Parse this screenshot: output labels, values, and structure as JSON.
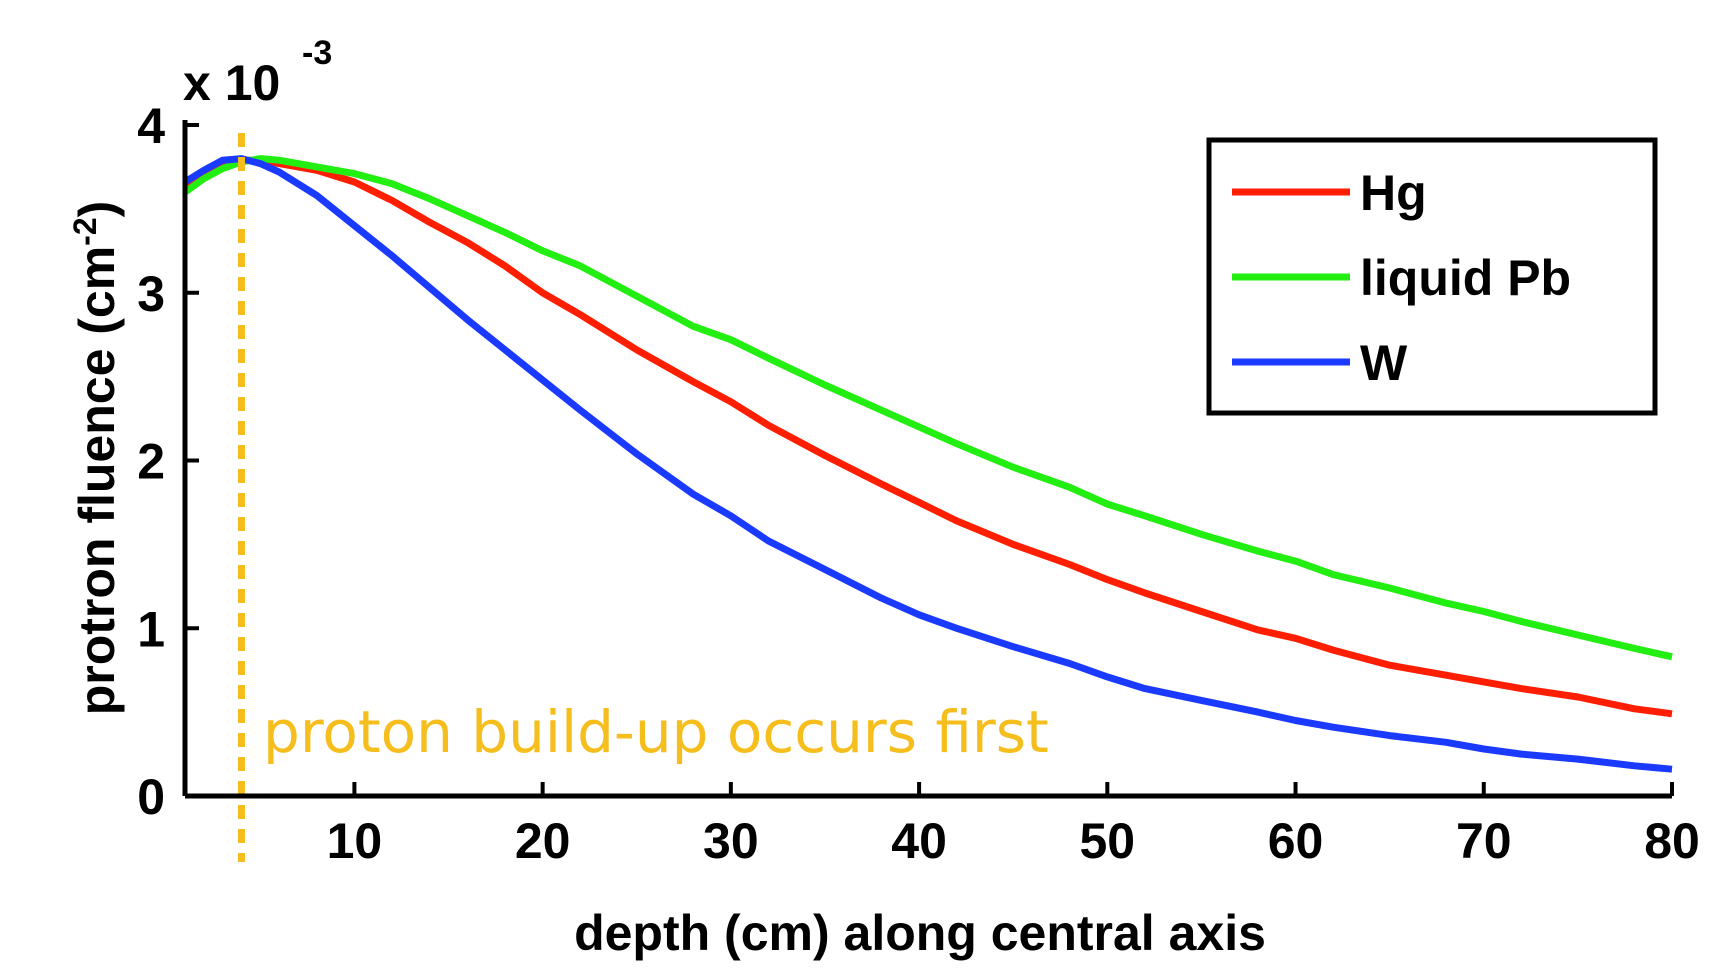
{
  "chart_data": {
    "type": "line",
    "title": "",
    "xlabel": "depth (cm) along central axis",
    "ylabel_main": "protron  fluence (cm",
    "ylabel_sup": "-2",
    "ylabel_close": ")",
    "exponent_base": "x 10",
    "exponent_power": "-3",
    "xlim": [
      1,
      80
    ],
    "ylim": [
      0,
      4
    ],
    "xticks": [
      10,
      20,
      30,
      40,
      50,
      60,
      70,
      80
    ],
    "yticks": [
      0,
      1,
      2,
      3,
      4
    ],
    "xtick_labels": [
      "10",
      "20",
      "30",
      "40",
      "50",
      "60",
      "70",
      "80"
    ],
    "ytick_labels": [
      "0",
      "1",
      "2",
      "3",
      "4"
    ],
    "grid": false,
    "legend_position": "top-right",
    "annotation": {
      "text": "proton build-up occurs first",
      "x_line": 4,
      "color": "#F5BE1C"
    },
    "series": [
      {
        "name": "Hg",
        "color": "#FF1E00",
        "x": [
          1,
          2,
          3,
          4,
          5,
          6,
          8,
          10,
          12,
          14,
          16,
          18,
          20,
          22,
          25,
          28,
          30,
          32,
          35,
          38,
          40,
          42,
          45,
          48,
          50,
          52,
          55,
          58,
          60,
          62,
          65,
          68,
          70,
          72,
          75,
          78,
          80
        ],
        "values": [
          3.63,
          3.7,
          3.76,
          3.79,
          3.79,
          3.77,
          3.73,
          3.66,
          3.55,
          3.42,
          3.3,
          3.16,
          3.0,
          2.87,
          2.66,
          2.47,
          2.35,
          2.21,
          2.03,
          1.86,
          1.75,
          1.64,
          1.5,
          1.38,
          1.29,
          1.21,
          1.1,
          0.99,
          0.94,
          0.87,
          0.78,
          0.72,
          0.68,
          0.64,
          0.59,
          0.52,
          0.49
        ]
      },
      {
        "name": "liquid Pb",
        "color": "#22EE11",
        "x": [
          1,
          2,
          3,
          4,
          5,
          6,
          8,
          10,
          12,
          14,
          16,
          18,
          20,
          22,
          25,
          28,
          30,
          32,
          35,
          38,
          40,
          42,
          45,
          48,
          50,
          52,
          55,
          58,
          60,
          62,
          65,
          68,
          70,
          72,
          75,
          78,
          80
        ],
        "values": [
          3.6,
          3.68,
          3.74,
          3.78,
          3.8,
          3.79,
          3.75,
          3.71,
          3.65,
          3.56,
          3.46,
          3.36,
          3.25,
          3.16,
          2.98,
          2.8,
          2.72,
          2.61,
          2.45,
          2.3,
          2.2,
          2.1,
          1.96,
          1.84,
          1.74,
          1.67,
          1.56,
          1.46,
          1.4,
          1.32,
          1.24,
          1.15,
          1.1,
          1.04,
          0.96,
          0.88,
          0.83
        ]
      },
      {
        "name": "W",
        "color": "#1A3BFF",
        "x": [
          1,
          2,
          3,
          4,
          5,
          6,
          8,
          10,
          12,
          14,
          16,
          18,
          20,
          22,
          25,
          28,
          30,
          32,
          35,
          38,
          40,
          42,
          45,
          48,
          50,
          52,
          55,
          58,
          60,
          62,
          65,
          68,
          70,
          72,
          75,
          78,
          80
        ],
        "values": [
          3.66,
          3.73,
          3.79,
          3.8,
          3.77,
          3.72,
          3.58,
          3.4,
          3.22,
          3.03,
          2.84,
          2.66,
          2.48,
          2.3,
          2.04,
          1.8,
          1.67,
          1.52,
          1.35,
          1.18,
          1.08,
          1.0,
          0.89,
          0.79,
          0.71,
          0.64,
          0.57,
          0.5,
          0.45,
          0.41,
          0.36,
          0.32,
          0.28,
          0.25,
          0.22,
          0.18,
          0.16
        ]
      }
    ]
  }
}
